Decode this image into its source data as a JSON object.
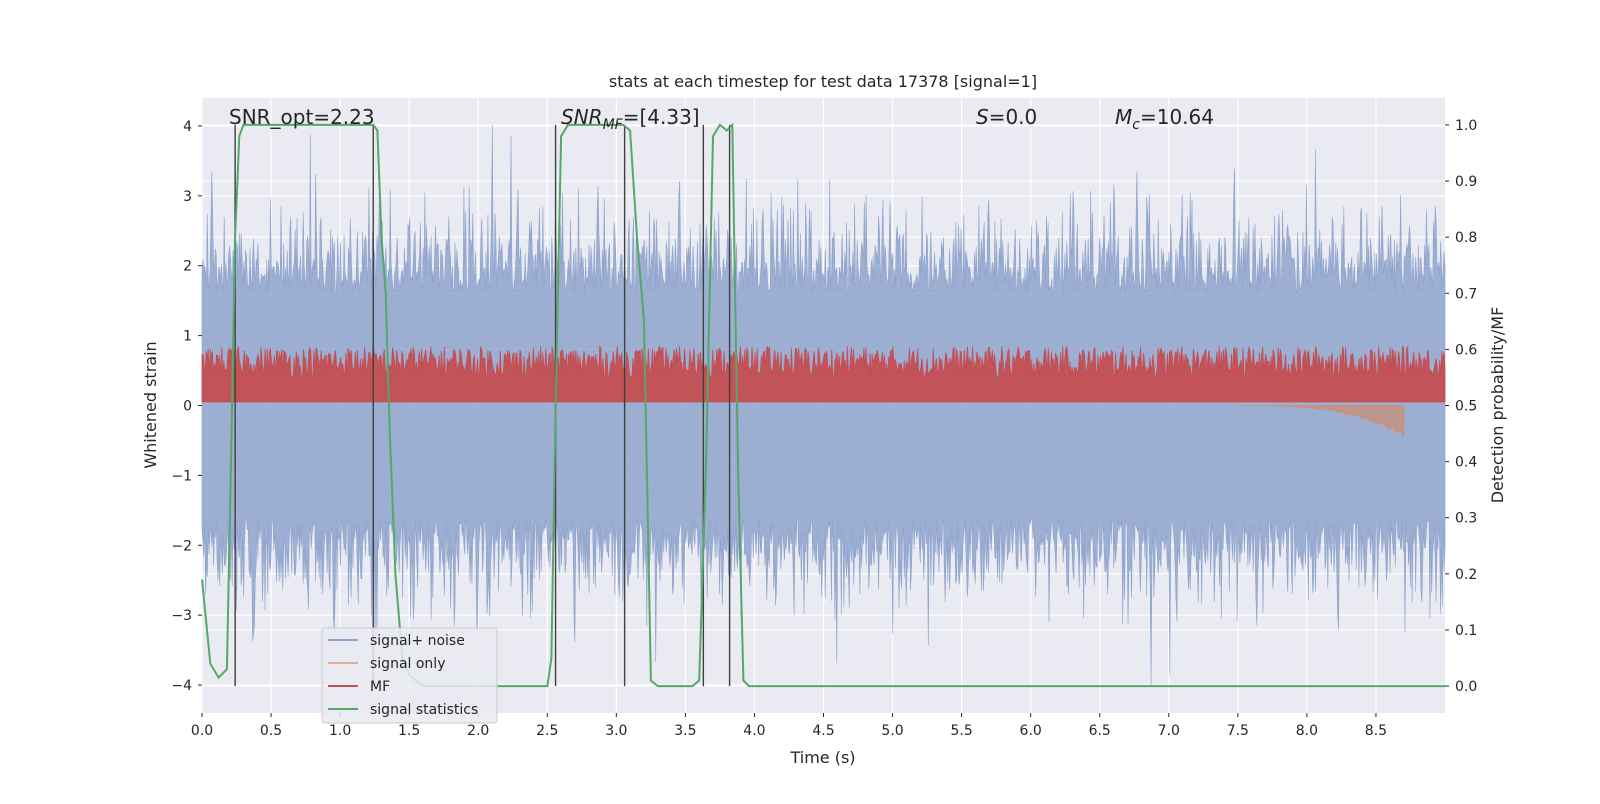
{
  "chart_data": {
    "type": "line",
    "title": "stats at each timestep for test data 17378 [signal=1]",
    "xlabel": "Time (s)",
    "ylabel_left": "Whitened strain",
    "ylabel_right": "Detection probability/MF",
    "xlim": [
      0,
      9.0
    ],
    "ylim_left": [
      -4.4,
      4.4
    ],
    "ylim_right": [
      -0.048,
      1.048
    ],
    "x_ticks": [
      "0.0",
      "0.5",
      "1.0",
      "1.5",
      "2.0",
      "2.5",
      "3.0",
      "3.5",
      "4.0",
      "4.5",
      "5.0",
      "5.5",
      "6.0",
      "6.5",
      "7.0",
      "7.5",
      "8.0",
      "8.5"
    ],
    "y_ticks_left": [
      "4",
      "3",
      "2",
      "1",
      "0",
      "−1",
      "−2",
      "−3",
      "−4"
    ],
    "y_ticks_right": [
      "1.0",
      "0.9",
      "0.8",
      "0.7",
      "0.6",
      "0.5",
      "0.4",
      "0.3",
      "0.2",
      "0.1",
      "0.0"
    ],
    "annotations": {
      "snr_opt": "SNR_opt=2.23",
      "snr_mf_sym": "SNR",
      "snr_mf_sub": "MF",
      "snr_mf_val": "=[4.33]",
      "s_sym": "S",
      "s_val": "=0.0",
      "mc_sym": "M",
      "mc_sub": "c",
      "mc_val": "=10.64"
    },
    "legend": {
      "position": "lower-left",
      "entries": [
        "signal+ noise",
        "signal only",
        "MF",
        "signal statistics"
      ]
    },
    "colors": {
      "signal_noise": "#8ea3cc",
      "signal_only": "#dd8452",
      "mf": "#c44e52",
      "signal_statistics": "#55a868",
      "vlines": "#404040",
      "plot_bg": "#eaeaf2",
      "grid": "#ffffff"
    },
    "series": [
      {
        "name": "signal statistics",
        "axis": "right",
        "x": [
          0.0,
          0.06,
          0.12,
          0.18,
          0.21,
          0.24,
          0.27,
          0.3,
          0.35,
          0.4,
          0.5,
          0.6,
          0.8,
          1.0,
          1.1,
          1.2,
          1.24,
          1.27,
          1.3,
          1.33,
          1.36,
          1.4,
          1.45,
          1.5,
          1.6,
          2.0,
          2.4,
          2.5,
          2.53,
          2.56,
          2.6,
          2.65,
          2.8,
          3.0,
          3.05,
          3.1,
          3.15,
          3.2,
          3.25,
          3.3,
          3.4,
          3.5,
          3.55,
          3.6,
          3.65,
          3.7,
          3.75,
          3.8,
          3.84,
          3.88,
          3.92,
          3.96,
          4.0,
          5.0,
          6.0,
          7.0,
          8.0,
          9.0
        ],
        "y": [
          0.19,
          0.04,
          0.015,
          0.03,
          0.4,
          0.8,
          0.98,
          1.0,
          1.0,
          1.0,
          1.0,
          1.0,
          1.0,
          1.0,
          1.0,
          1.0,
          1.0,
          0.99,
          0.8,
          0.7,
          0.45,
          0.2,
          0.05,
          0.02,
          0.0,
          0.0,
          0.0,
          0.0,
          0.05,
          0.5,
          0.98,
          1.0,
          1.0,
          1.0,
          1.0,
          0.99,
          0.8,
          0.65,
          0.01,
          0.0,
          0.0,
          0.0,
          0.0,
          0.01,
          0.4,
          0.98,
          1.0,
          0.99,
          1.0,
          0.4,
          0.01,
          0.0,
          0.0,
          0.0,
          0.0,
          0.0,
          0.0,
          0.0
        ]
      }
    ],
    "shaded_bands": [
      {
        "name": "signal+ noise",
        "axis": "left",
        "approx_range": [
          -1.6,
          1.6
        ]
      },
      {
        "name": "MF",
        "axis": "left",
        "approx_range": [
          0.05,
          0.65
        ]
      },
      {
        "name": "signal only",
        "axis": "left",
        "x_range": [
          7.5,
          8.7
        ],
        "approx_min": -0.45
      }
    ],
    "vertical_lines": [
      0.24,
      1.24,
      2.56,
      3.06,
      3.63,
      3.82
    ]
  }
}
